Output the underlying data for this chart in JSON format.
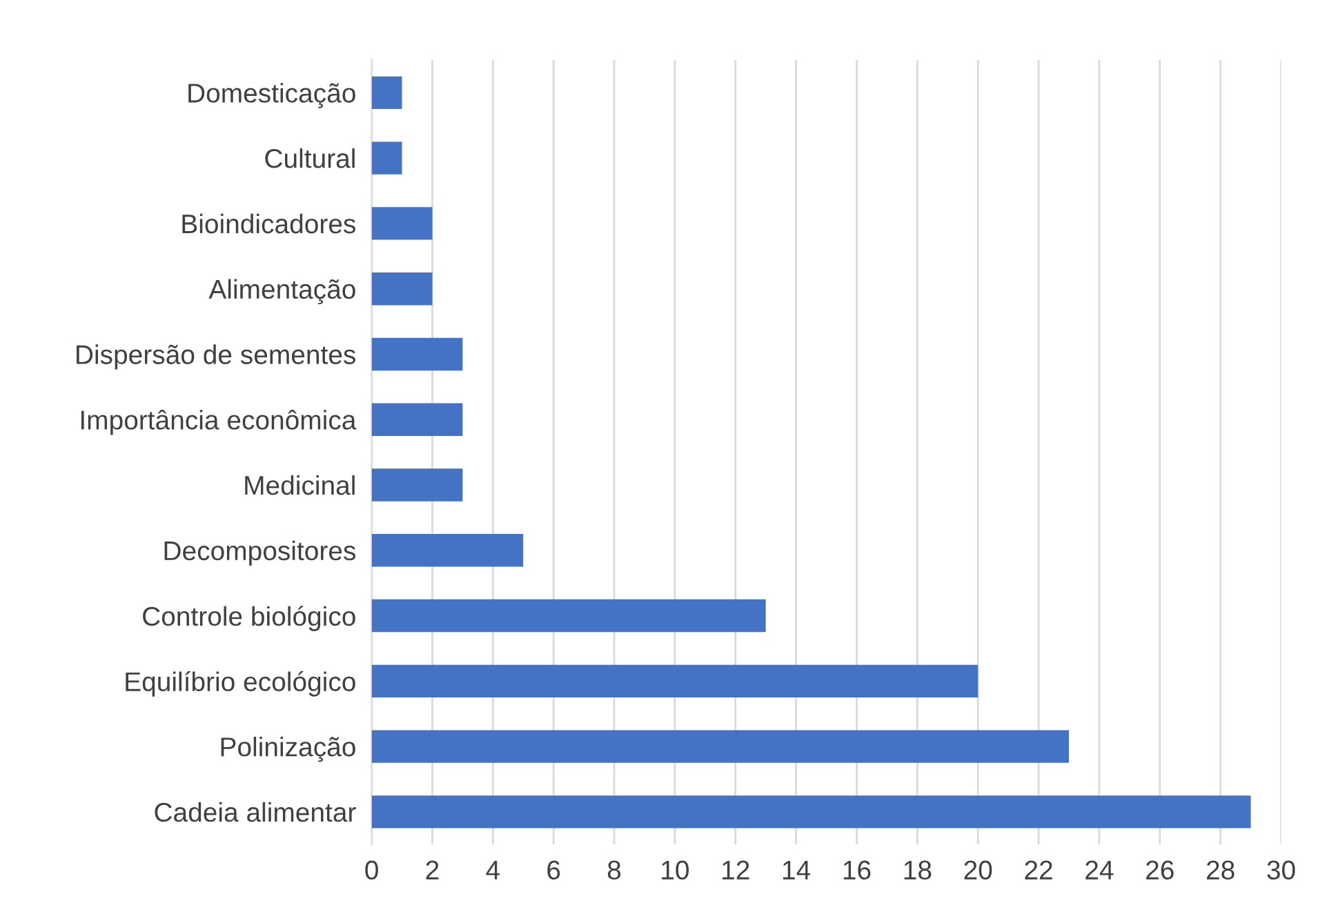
{
  "chart_data": {
    "type": "bar",
    "orientation": "horizontal",
    "categories": [
      "Domesticação",
      "Cultural",
      "Bioindicadores",
      "Alimentação",
      "Dispersão de sementes",
      "Importância econômica",
      "Medicinal",
      "Decompositores",
      "Controle biológico",
      "Equilíbrio ecológico",
      "Polinização",
      "Cadeia alimentar"
    ],
    "values": [
      1,
      1,
      2,
      2,
      3,
      3,
      3,
      5,
      13,
      20,
      23,
      29
    ],
    "color": "#4472c4",
    "xlim": [
      0,
      30
    ],
    "xticks": [
      0,
      2,
      4,
      6,
      8,
      10,
      12,
      14,
      16,
      18,
      20,
      22,
      24,
      26,
      28,
      30
    ],
    "grid": "x"
  }
}
